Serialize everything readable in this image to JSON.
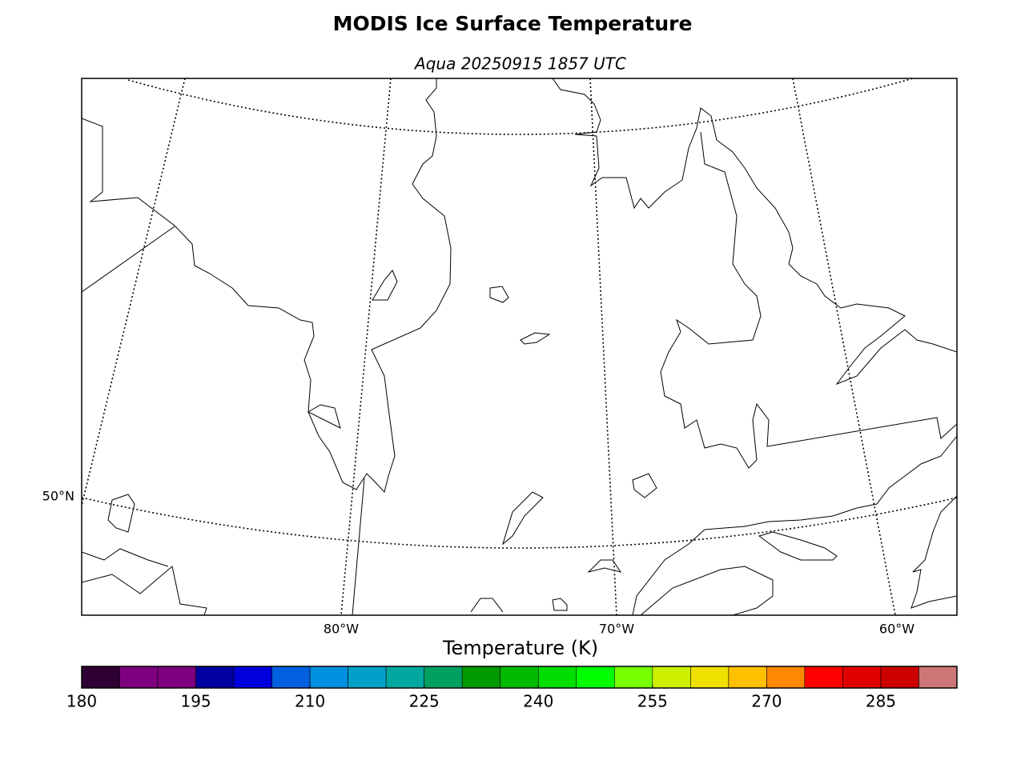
{
  "title": "MODIS Ice Surface Temperature",
  "subtitle": "Aqua 20250915 1857 UTC",
  "map": {
    "lon_labels": [
      "80°W",
      "70°W",
      "60°W"
    ],
    "lat_labels": [
      "50°N"
    ]
  },
  "colorbar": {
    "label": "Temperature (K)",
    "lim": [
      180,
      295
    ],
    "bins": [
      180,
      185,
      190,
      195,
      200,
      205,
      210,
      215,
      220,
      225,
      230,
      235,
      240,
      245,
      250,
      255,
      260,
      265,
      270,
      275,
      280,
      285,
      290,
      295
    ],
    "colors": [
      "#2e0033",
      "#7f007f",
      "#7f007f",
      "#0000a0",
      "#0000dd",
      "#0060e0",
      "#0090e0",
      "#00a0c8",
      "#00a8a0",
      "#00a060",
      "#009900",
      "#00bb00",
      "#00dd00",
      "#00ff00",
      "#77ff00",
      "#ccf000",
      "#f0e000",
      "#ffc000",
      "#ff8800",
      "#ff0000",
      "#e00000",
      "#cc0000",
      "#cc7777"
    ],
    "ticks": [
      180,
      195,
      210,
      225,
      240,
      255,
      270,
      285
    ]
  }
}
